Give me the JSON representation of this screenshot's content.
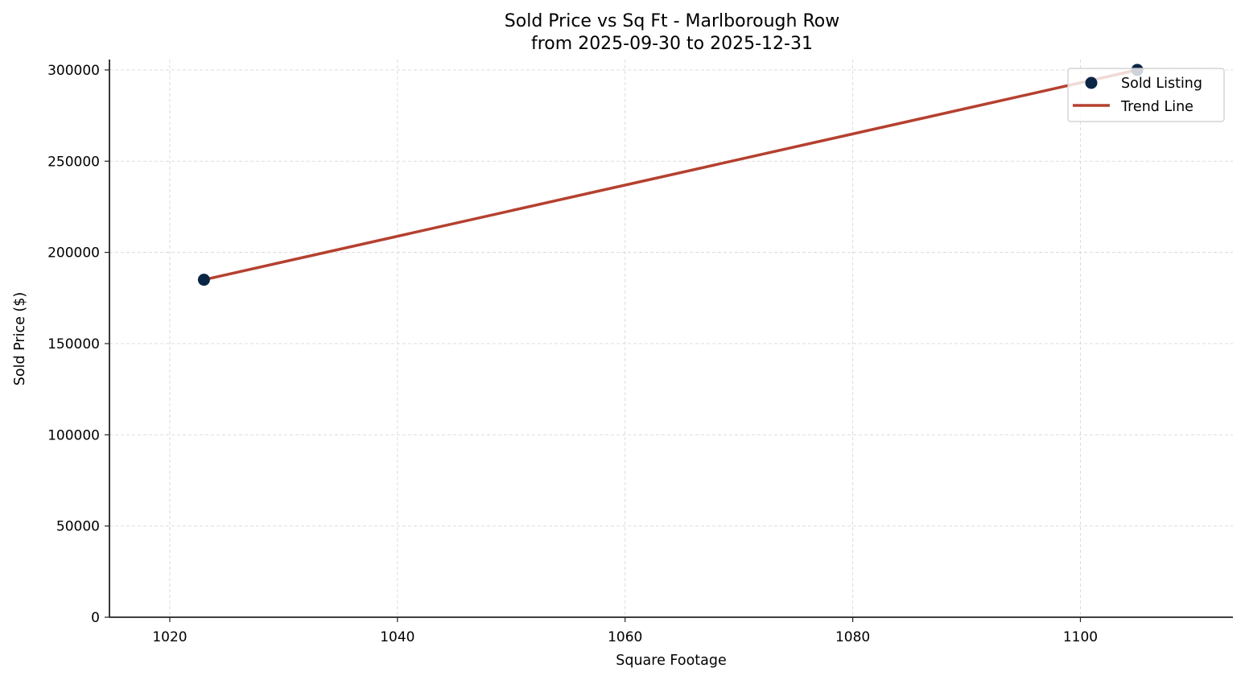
{
  "chart_data": {
    "type": "scatter",
    "title": "Sold Price vs Sq Ft - Marlborough Row",
    "subtitle": "from 2025-09-30 to 2025-12-31",
    "xlabel": "Square Footage",
    "ylabel": "Sold Price ($)",
    "xlim": [
      1014.7,
      1113.4
    ],
    "ylim": [
      0,
      305700
    ],
    "xticks": [
      1020,
      1040,
      1060,
      1080,
      1100
    ],
    "xtick_labels": [
      "1020",
      "1040",
      "1060",
      "1080",
      "1100"
    ],
    "yticks": [
      0,
      50000,
      100000,
      150000,
      200000,
      250000,
      300000
    ],
    "ytick_labels": [
      "0",
      "50000",
      "100000",
      "150000",
      "200000",
      "250000",
      "300000"
    ],
    "grid": true,
    "legend_position": "upper right",
    "series": [
      {
        "name": "Sold Listing",
        "kind": "scatter",
        "color": "#0b2545",
        "x": [
          1023,
          1105
        ],
        "y": [
          185000,
          300000
        ]
      },
      {
        "name": "Trend Line",
        "kind": "line",
        "color": "#b5402f",
        "x": [
          1023,
          1105
        ],
        "y": [
          185000,
          300000
        ]
      }
    ]
  },
  "legend": {
    "items": [
      {
        "label": "Sold Listing"
      },
      {
        "label": "Trend Line"
      }
    ]
  }
}
